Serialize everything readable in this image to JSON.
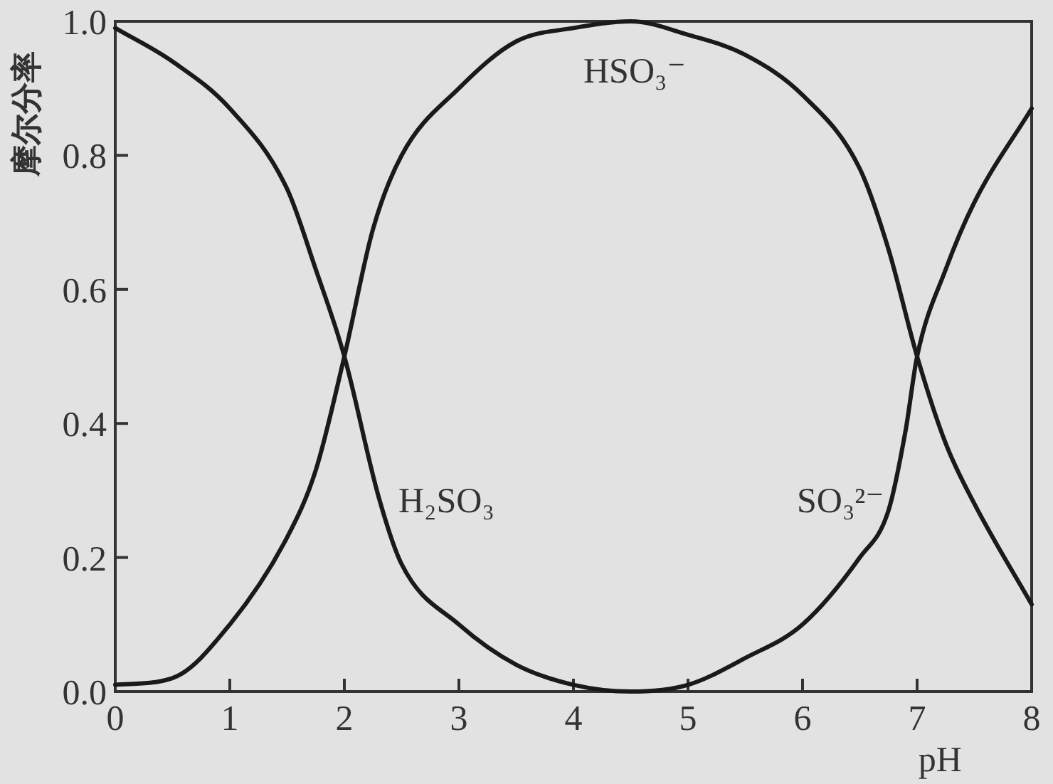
{
  "chart_data": {
    "type": "line",
    "ylabel": "摩尔分率",
    "xlabel": "pH",
    "xlim": [
      0,
      8
    ],
    "ylim": [
      0,
      1
    ],
    "xticks": [
      0,
      1,
      2,
      3,
      4,
      5,
      6,
      7,
      8
    ],
    "yticks": [
      {
        "value": 0,
        "label": "0.0"
      },
      {
        "value": 0.2,
        "label": "0.2"
      },
      {
        "value": 0.4,
        "label": "0.4"
      },
      {
        "value": 0.6,
        "label": "0.6"
      },
      {
        "value": 0.8,
        "label": "0.8"
      },
      {
        "value": 1,
        "label": "1.0"
      }
    ],
    "line_style": "solid",
    "series": [
      {
        "color": "#1a1a1a",
        "x": [
          0,
          0.5,
          1,
          1.5,
          1.75,
          2,
          2.3,
          2.5,
          3,
          3.5,
          4,
          4.5,
          5,
          5.5,
          6,
          6.5,
          6.75,
          6.9,
          7,
          7.25,
          7.5,
          8
        ],
        "values": [
          0.99,
          0.94,
          0.87,
          0.75,
          0.63,
          0.5,
          0.29,
          0.19,
          0.1,
          0.04,
          0.01,
          0,
          0.01,
          0.05,
          0.1,
          0.2,
          0.27,
          0.39,
          0.5,
          0.63,
          0.73,
          0.87
        ]
      },
      {
        "color": "#1a1a1a",
        "x": [
          0,
          0.5,
          1,
          1.5,
          1.75,
          2,
          2.25,
          2.5,
          3,
          3.5,
          4,
          4.5,
          5,
          5.5,
          6,
          6.5,
          6.75,
          7,
          7.25,
          7.5,
          8
        ],
        "values": [
          0.01,
          0.02,
          0.1,
          0.23,
          0.33,
          0.5,
          0.69,
          0.8,
          0.9,
          0.97,
          0.99,
          1.0,
          0.98,
          0.95,
          0.89,
          0.78,
          0.66,
          0.5,
          0.37,
          0.28,
          0.13
        ]
      }
    ],
    "annotations": [
      "HSO₃⁻",
      "H₂SO₃",
      "SO₃²⁻"
    ]
  }
}
